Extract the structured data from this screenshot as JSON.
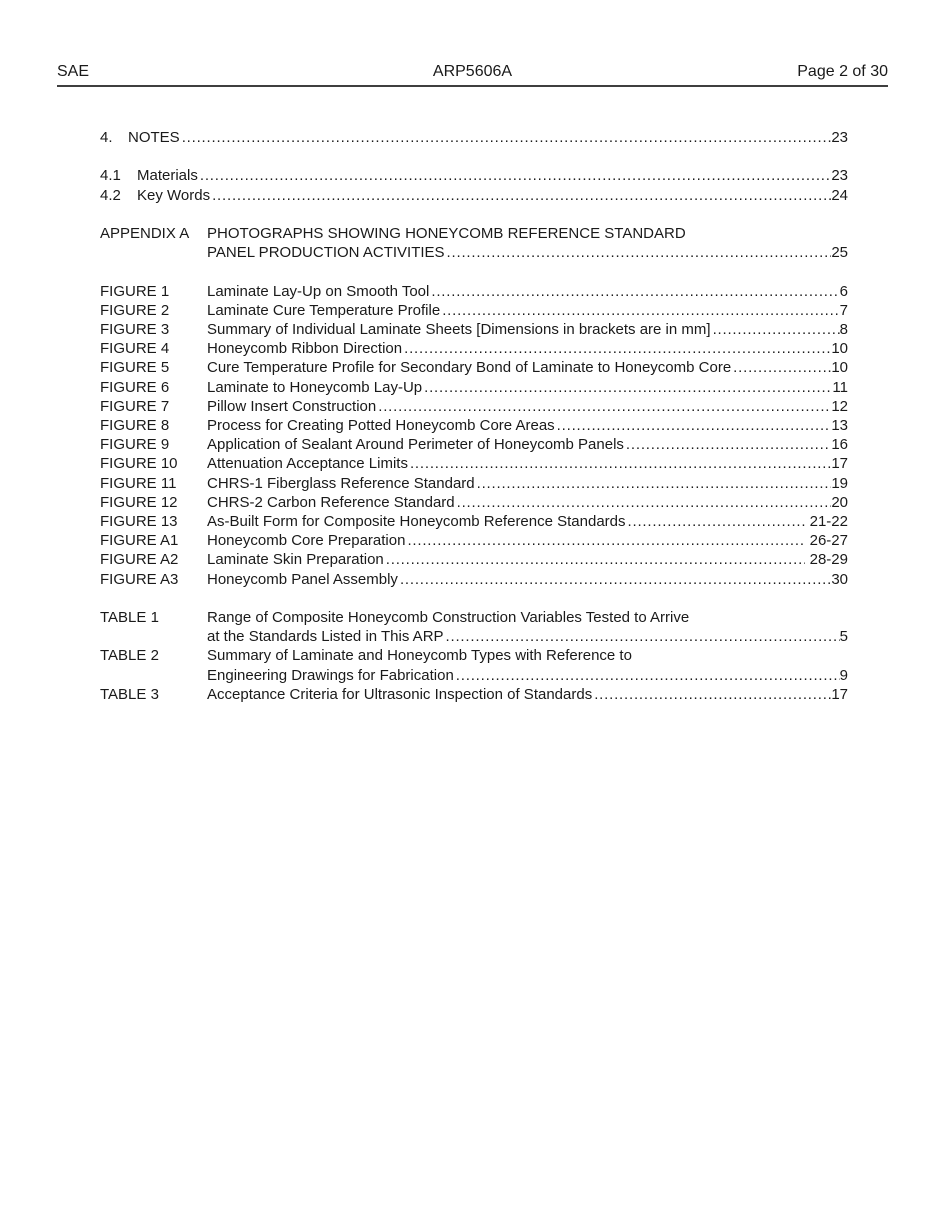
{
  "header": {
    "left": "SAE",
    "center": "ARP5606A",
    "right": "Page 2 of 30"
  },
  "colors": {
    "text": "#1a1a1a",
    "header_rule": "#3f3f3f",
    "page_background": "#ffffff"
  },
  "toc_sections": [
    {
      "id": "notes-main",
      "rows": [
        {
          "kind": "section",
          "label": "4.",
          "lines": [
            "NOTES"
          ],
          "page": "23"
        }
      ]
    },
    {
      "id": "notes-sub",
      "rows": [
        {
          "kind": "subsection",
          "label": "4.1",
          "lines": [
            "Materials"
          ],
          "page": "23"
        },
        {
          "kind": "subsection",
          "label": "4.2",
          "lines": [
            "Key Words"
          ],
          "page": "24"
        }
      ]
    },
    {
      "id": "appendix",
      "rows": [
        {
          "kind": "item",
          "label": "APPENDIX A",
          "lines": [
            "PHOTOGRAPHS SHOWING HONEYCOMB REFERENCE STANDARD",
            "PANEL PRODUCTION ACTIVITIES"
          ],
          "page": "25"
        }
      ]
    },
    {
      "id": "figures",
      "rows": [
        {
          "kind": "item",
          "label": "FIGURE 1",
          "lines": [
            "Laminate Lay-Up on Smooth Tool"
          ],
          "page": "6"
        },
        {
          "kind": "item",
          "label": "FIGURE 2",
          "lines": [
            "Laminate Cure Temperature Profile"
          ],
          "page": "7"
        },
        {
          "kind": "item",
          "label": "FIGURE 3",
          "lines": [
            "Summary of Individual Laminate Sheets [Dimensions in brackets are in mm]"
          ],
          "page": "8"
        },
        {
          "kind": "item",
          "label": "FIGURE 4",
          "lines": [
            "Honeycomb Ribbon Direction"
          ],
          "page": "10"
        },
        {
          "kind": "item",
          "label": "FIGURE 5",
          "lines": [
            "Cure Temperature Profile for Secondary Bond of Laminate to Honeycomb Core"
          ],
          "page": "10"
        },
        {
          "kind": "item",
          "label": "FIGURE 6",
          "lines": [
            "Laminate to Honeycomb Lay-Up"
          ],
          "page": "11"
        },
        {
          "kind": "item",
          "label": "FIGURE 7",
          "lines": [
            "Pillow Insert Construction"
          ],
          "page": "12"
        },
        {
          "kind": "item",
          "label": "FIGURE 8",
          "lines": [
            "Process for Creating Potted Honeycomb Core Areas"
          ],
          "page": "13"
        },
        {
          "kind": "item",
          "label": "FIGURE 9",
          "lines": [
            "Application of Sealant Around Perimeter of Honeycomb Panels"
          ],
          "page": "16"
        },
        {
          "kind": "item",
          "label": "FIGURE 10",
          "lines": [
            "Attenuation Acceptance Limits"
          ],
          "page": "17"
        },
        {
          "kind": "item",
          "label": "FIGURE 11",
          "lines": [
            "CHRS-1 Fiberglass Reference Standard"
          ],
          "page": "19"
        },
        {
          "kind": "item",
          "label": "FIGURE 12",
          "lines": [
            "CHRS-2 Carbon Reference Standard"
          ],
          "page": "20"
        },
        {
          "kind": "item",
          "label": "FIGURE 13",
          "lines": [
            "As-Built Form for Composite Honeycomb Reference Standards"
          ],
          "page": " 21-22"
        },
        {
          "kind": "item",
          "label": "FIGURE A1",
          "lines": [
            "Honeycomb Core Preparation"
          ],
          "page": " 26-27"
        },
        {
          "kind": "item",
          "label": "FIGURE A2",
          "lines": [
            "Laminate Skin Preparation"
          ],
          "page": " 28-29"
        },
        {
          "kind": "item",
          "label": "FIGURE A3",
          "lines": [
            "Honeycomb Panel Assembly"
          ],
          "page": "30"
        }
      ]
    },
    {
      "id": "tables",
      "rows": [
        {
          "kind": "item",
          "label": "TABLE 1",
          "lines": [
            "Range of Composite Honeycomb Construction Variables Tested to Arrive",
            "at the Standards Listed in This ARP"
          ],
          "page": "5"
        },
        {
          "kind": "item",
          "label": "TABLE 2",
          "lines": [
            "Summary of Laminate and Honeycomb Types with Reference to",
            "Engineering Drawings for Fabrication"
          ],
          "page": "9"
        },
        {
          "kind": "item",
          "label": "TABLE 3",
          "lines": [
            "Acceptance Criteria for Ultrasonic Inspection of Standards"
          ],
          "page": "17"
        }
      ]
    }
  ]
}
